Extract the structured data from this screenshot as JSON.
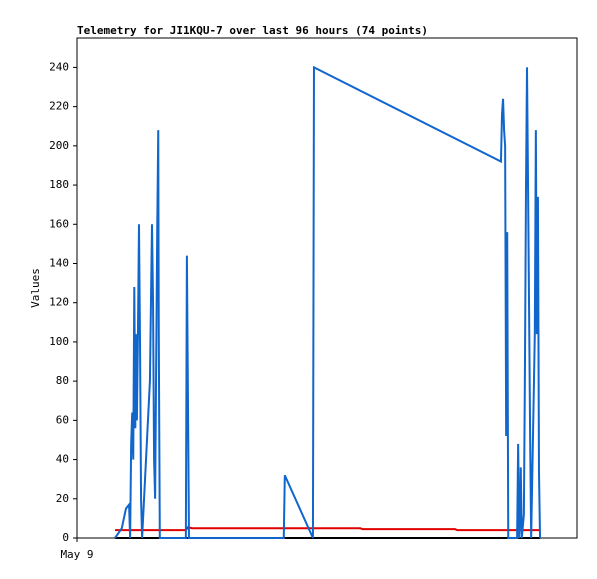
{
  "chart_data": {
    "type": "line",
    "title": "Telemetry for JI1KQU-7 over last 96 hours (74 points)",
    "y_label": "Values",
    "xlim": [
      0,
      96
    ],
    "xticks": [
      {
        "value": 0,
        "label": "May 9"
      }
    ],
    "ylim": [
      0,
      255
    ],
    "yticks": [
      0,
      20,
      40,
      60,
      80,
      100,
      120,
      140,
      160,
      180,
      200,
      220,
      240
    ],
    "grid": false,
    "series": [
      {
        "color": "#000000",
        "x": [
          7.3,
          88.9
        ],
        "values": [
          0,
          0
        ]
      },
      {
        "color": "#e00000",
        "x": [
          7.3,
          20.9,
          21.3,
          22.1,
          54.4,
          54.8,
          72.6,
          73.0,
          88.9
        ],
        "values": [
          4,
          4,
          5.5,
          5,
          5,
          4.5,
          4.5,
          4,
          4
        ]
      },
      {
        "color": "#1166cc",
        "x": [
          7.3,
          8.6,
          9.4,
          10.0,
          10.2,
          10.4,
          10.6,
          10.8,
          11.0,
          11.2,
          11.3,
          11.5,
          11.7,
          11.9,
          12.1,
          12.3,
          12.5,
          14.0,
          14.4,
          14.6,
          14.8,
          15.0,
          15.4,
          15.6,
          15.7,
          15.9,
          20.9,
          21.1,
          21.3,
          21.5,
          39.7,
          39.9,
          45.3,
          45.5,
          81.4,
          81.6,
          81.8,
          82.0,
          82.2,
          82.4,
          82.6,
          82.8,
          84.5,
          84.7,
          84.9,
          85.1,
          85.2,
          85.4,
          85.8,
          86.0,
          86.2,
          86.4,
          86.6,
          87.0,
          87.2,
          87.9,
          88.1,
          88.3,
          88.5,
          88.7,
          88.9
        ],
        "values": [
          0,
          5,
          15,
          17,
          0,
          48,
          64,
          40,
          128,
          56,
          104,
          60,
          104,
          160,
          100,
          20,
          0,
          80,
          160,
          120,
          40,
          20,
          156,
          208,
          104,
          0,
          0,
          144,
          72,
          0,
          0,
          32,
          0,
          240,
          192,
          216,
          224,
          208,
          200,
          52,
          156,
          0,
          0,
          48,
          0,
          12,
          36,
          0,
          12,
          84,
          176,
          240,
          180,
          52,
          0,
          104,
          208,
          104,
          174,
          34,
          0
        ]
      }
    ]
  }
}
